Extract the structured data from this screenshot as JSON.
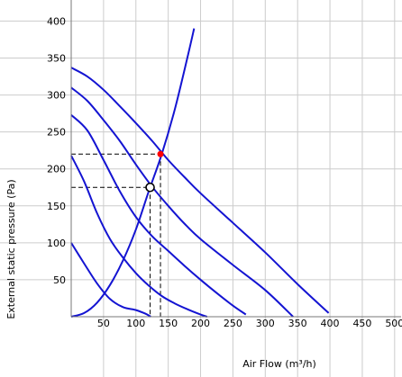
{
  "chart_data": {
    "type": "line",
    "xlabel": "Air Flow (m³/h)",
    "ylabel": "External static pressure (Pa)",
    "xlim": [
      0,
      510
    ],
    "ylim": [
      0,
      420
    ],
    "x_ticks": [
      50,
      100,
      150,
      200,
      250,
      300,
      350,
      400,
      450,
      500
    ],
    "y_ticks": [
      50,
      100,
      150,
      200,
      250,
      300,
      350,
      400
    ],
    "grid": true,
    "colors": {
      "curve": "#1414d2",
      "grid": "#cccccc",
      "guide": "#000000",
      "operating_point": "#ff0000"
    },
    "series": [
      {
        "x": [
          0,
          20,
          40,
          60,
          80,
          100,
          115,
          123
        ],
        "y": [
          100,
          72,
          45,
          24,
          13,
          9,
          4,
          0
        ]
      },
      {
        "x": [
          0,
          20,
          40,
          60,
          80,
          100,
          120,
          140,
          160,
          180,
          200,
          210
        ],
        "y": [
          218,
          183,
          140,
          105,
          80,
          59,
          42,
          28,
          18,
          10,
          3,
          0
        ]
      },
      {
        "x": [
          0,
          25,
          50,
          75,
          100,
          125,
          150,
          175,
          200,
          225,
          250,
          270
        ],
        "y": [
          273,
          252,
          212,
          170,
          135,
          109,
          89,
          69,
          50,
          32,
          15,
          3
        ]
      },
      {
        "x": [
          0,
          25,
          50,
          75,
          100,
          125,
          150,
          175,
          200,
          250,
          300,
          343
        ],
        "y": [
          310,
          292,
          266,
          238,
          206,
          176,
          150,
          126,
          105,
          70,
          36,
          0
        ]
      },
      {
        "x": [
          0,
          25,
          50,
          75,
          100,
          125,
          150,
          175,
          200,
          250,
          300,
          350,
          398
        ],
        "y": [
          337,
          325,
          307,
          285,
          262,
          238,
          212,
          189,
          167,
          127,
          87,
          44,
          5
        ]
      },
      {
        "x": [
          0,
          20,
          40,
          60,
          80,
          100,
          120,
          140,
          160,
          180,
          190
        ],
        "y": [
          0,
          5,
          19,
          43,
          76,
          118,
          170,
          220,
          280,
          352,
          390
        ]
      }
    ],
    "guides": [
      {
        "x": 122,
        "y": 175
      },
      {
        "x": 138,
        "y": 220
      }
    ],
    "markers": [
      {
        "x": 122,
        "y": 175,
        "style": "open-circle"
      },
      {
        "x": 138,
        "y": 220,
        "style": "filled-red"
      }
    ]
  }
}
